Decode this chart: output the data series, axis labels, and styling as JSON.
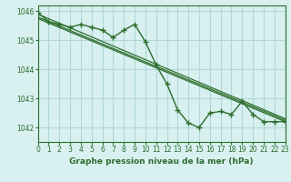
{
  "title": "Graphe pression niveau de la mer (hPa)",
  "bg_color": "#d8f0f0",
  "grid_color": "#b0d8d8",
  "line_color": "#2d6e2d",
  "marker_color": "#2d6e2d",
  "xlim": [
    0,
    23
  ],
  "ylim": [
    1041.5,
    1046.2
  ],
  "xticks": [
    0,
    1,
    2,
    3,
    4,
    5,
    6,
    7,
    8,
    9,
    10,
    11,
    12,
    13,
    14,
    15,
    16,
    17,
    18,
    19,
    20,
    21,
    22,
    23
  ],
  "yticks": [
    1042,
    1043,
    1044,
    1045,
    1046
  ],
  "main_series": [
    [
      0,
      1045.95
    ],
    [
      1,
      1045.65
    ],
    [
      2,
      1045.55
    ],
    [
      3,
      1045.45
    ],
    [
      4,
      1045.55
    ],
    [
      5,
      1045.45
    ],
    [
      6,
      1045.35
    ],
    [
      7,
      1045.1
    ],
    [
      8,
      1045.35
    ],
    [
      9,
      1045.55
    ],
    [
      10,
      1044.95
    ],
    [
      11,
      1044.15
    ],
    [
      12,
      1043.5
    ],
    [
      13,
      1042.6
    ],
    [
      14,
      1042.15
    ],
    [
      15,
      1042.0
    ],
    [
      16,
      1042.5
    ],
    [
      17,
      1042.55
    ],
    [
      18,
      1042.45
    ],
    [
      19,
      1042.9
    ],
    [
      20,
      1042.45
    ],
    [
      21,
      1042.2
    ],
    [
      22,
      1042.2
    ],
    [
      23,
      1042.2
    ]
  ],
  "trend_lines": [
    [
      [
        0,
        1045.9
      ],
      [
        23,
        1042.3
      ]
    ],
    [
      [
        0,
        1045.8
      ],
      [
        23,
        1042.25
      ]
    ],
    [
      [
        0,
        1045.75
      ],
      [
        23,
        1042.2
      ]
    ]
  ]
}
